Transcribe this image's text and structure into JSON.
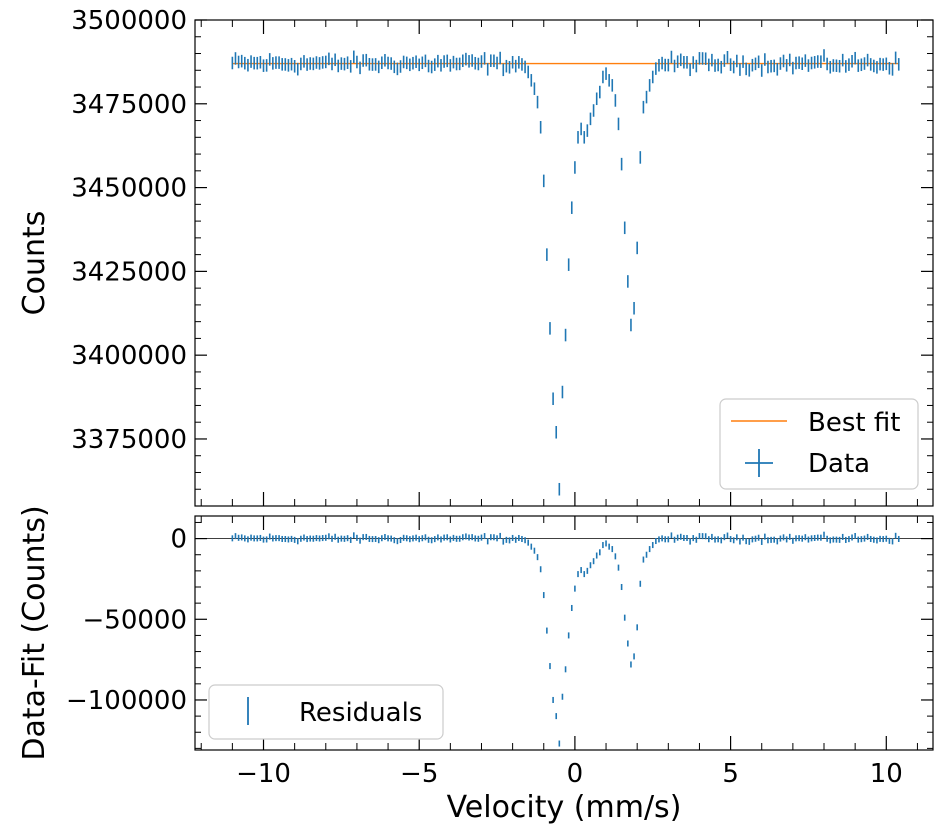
{
  "chart_data": [
    {
      "type": "scatter",
      "panel": "top",
      "title": "",
      "xlabel": "",
      "ylabel": "Counts",
      "xlim": [
        -12.2,
        11.5
      ],
      "ylim": [
        3355000,
        3500000
      ],
      "yticks": [
        3375000,
        3400000,
        3425000,
        3450000,
        3475000,
        3500000
      ],
      "yticklabels": [
        "3375000",
        "3400000",
        "3425000",
        "3450000",
        "3475000",
        "3500000"
      ],
      "xticks": [
        -10,
        -5,
        0,
        5,
        10
      ],
      "legend": {
        "placement": "bottom-right",
        "entries": [
          {
            "label": "Best fit",
            "color": "#ff7f0e",
            "marker": "line"
          },
          {
            "label": "Data",
            "color": "#1f77b4",
            "marker": "errorbar"
          }
        ]
      },
      "series": [
        {
          "name": "Best fit",
          "kind": "line",
          "color": "#ff7f0e",
          "x": [
            -11.0,
            10.4
          ],
          "y": [
            3487000,
            3487000
          ]
        },
        {
          "name": "Data",
          "kind": "errorbar",
          "color": "#1f77b4",
          "yerr": 1870,
          "x": [
            -1.6,
            -1.5,
            -1.4,
            -1.3,
            -1.2,
            -1.1,
            -1.0,
            -0.9,
            -0.8,
            -0.7,
            -0.6,
            -0.5,
            -0.4,
            -0.3,
            -0.2,
            -0.1,
            0.0,
            0.1,
            0.2,
            0.3,
            0.4,
            0.5,
            0.6,
            0.7,
            0.8,
            0.9,
            1.0,
            1.1,
            1.2,
            1.3,
            1.4,
            1.5,
            1.6,
            1.7,
            1.8,
            1.9,
            2.0,
            2.1,
            2.2,
            2.3,
            2.4,
            2.5,
            2.6,
            2.7
          ],
          "y": [
            3486000,
            3484500,
            3482000,
            3479500,
            3475500,
            3468000,
            3452000,
            3430000,
            3408000,
            3387000,
            3377000,
            3360000,
            3389000,
            3406000,
            3427000,
            3444000,
            3456000,
            3465000,
            3467500,
            3465000,
            3467000,
            3470500,
            3473000,
            3476500,
            3478500,
            3483000,
            3484000,
            3482000,
            3480500,
            3476000,
            3469000,
            3457000,
            3438000,
            3422000,
            3409000,
            3414000,
            3432000,
            3459000,
            3474000,
            3477000,
            3480500,
            3483000,
            3485500,
            3486500
          ]
        }
      ]
    },
    {
      "type": "scatter",
      "panel": "bottom",
      "title": "",
      "xlabel": "Velocity (mm/s)",
      "ylabel": "Data-Fit (Counts)",
      "xlim": [
        -12.2,
        11.5
      ],
      "ylim": [
        -131000,
        14000
      ],
      "yticks": [
        -100000,
        -50000,
        0
      ],
      "yticklabels": [
        "−100000",
        "−50000",
        "0"
      ],
      "xticks": [
        -10,
        -5,
        0,
        5,
        10
      ],
      "xticklabels": [
        "−10",
        "−5",
        "0",
        "5",
        "10"
      ],
      "zero_line": true,
      "legend": {
        "placement": "bottom-left",
        "entries": [
          {
            "label": "Residuals",
            "color": "#1f77b4",
            "marker": "errorbar"
          }
        ]
      },
      "series": [
        {
          "name": "Residuals",
          "kind": "errorbar",
          "color": "#1f77b4",
          "yerr": 1870,
          "x": [
            -1.6,
            -1.5,
            -1.4,
            -1.3,
            -1.2,
            -1.1,
            -1.0,
            -0.9,
            -0.8,
            -0.7,
            -0.6,
            -0.5,
            -0.4,
            -0.3,
            -0.2,
            -0.1,
            0.0,
            0.1,
            0.2,
            0.3,
            0.4,
            0.5,
            0.6,
            0.7,
            0.8,
            0.9,
            1.0,
            1.1,
            1.2,
            1.3,
            1.4,
            1.5,
            1.6,
            1.7,
            1.8,
            1.9,
            2.0,
            2.1,
            2.2,
            2.3,
            2.4,
            2.5,
            2.6,
            2.7
          ],
          "y": [
            -1000,
            -2500,
            -5000,
            -7500,
            -11500,
            -19000,
            -35000,
            -57000,
            -79000,
            -100000,
            -110000,
            -127000,
            -98000,
            -81000,
            -60000,
            -43000,
            -31000,
            -22000,
            -19500,
            -22000,
            -20000,
            -16500,
            -14000,
            -10500,
            -8500,
            -4000,
            -3000,
            -5000,
            -6500,
            -11000,
            -18000,
            -30000,
            -49000,
            -65000,
            -78000,
            -73000,
            -55000,
            -28000,
            -13000,
            -10000,
            -6500,
            -4000,
            -1500,
            -500
          ]
        }
      ]
    }
  ]
}
